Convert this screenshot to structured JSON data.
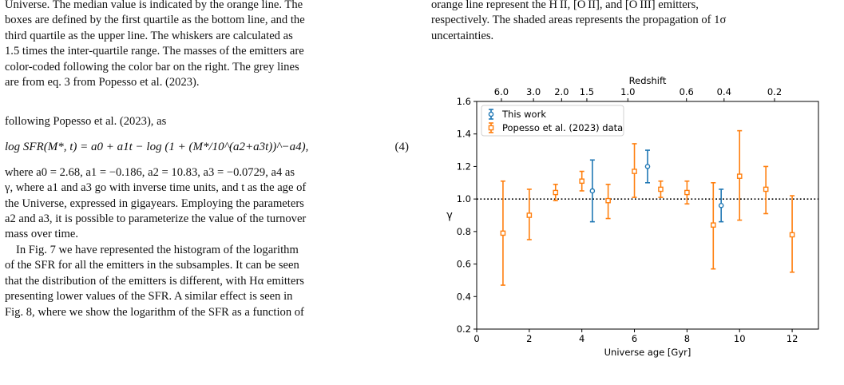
{
  "left_column": {
    "caption_lines": [
      "Universe. The median value is indicated by the orange line. The",
      "boxes are defined by the first quartile as the bottom line, and the",
      "third quartile as the upper line. The whiskers are calculated as",
      "1.5 times the inter-quartile range. The masses of the emitters are",
      "color-coded following the color bar on the right. The grey lines",
      "are from eq. 3 from Popesso et al. (2023)."
    ],
    "intro": "following Popesso et al. (2023), as",
    "equation": {
      "text": "log SFR(M*, t) = a0 + a1t − log (1 + (M*/10^(a2+a3t))^−a4),",
      "number": "(4)"
    },
    "para1_lines": [
      "where a0 = 2.68, a1 = −0.186, a2 = 10.83, a3 = −0.0729, a4 as",
      "γ, where a1 and a3 go with inverse time units, and t as the age of",
      "the Universe, expressed in gigayears. Employing the parameters",
      "a2 and a3, it is possible to parameterize the value of the turnover",
      "mass over time."
    ],
    "para2_lines": [
      "In Fig. 7 we have represented the histogram of the logarithm",
      "of the SFR for all the emitters in the subsamples. It can be seen",
      "that the distribution of the emitters is different, with Hα emitters",
      "presenting lower values of the SFR. A similar effect is seen in",
      "Fig. 8, where we show the logarithm of the SFR as a function of"
    ]
  },
  "right_column": {
    "caption_lines": [
      "orange line represent the H II, [O II], and [O III] emitters,",
      "respectively. The shaded areas represents the propagation of 1σ",
      "uncertainties."
    ]
  },
  "chart_data": {
    "type": "scatter",
    "title": "",
    "xlabel": "Universe age [Gyr]",
    "ylabel": "γ",
    "top_axis_label": "Redshift",
    "xlim": [
      0,
      13
    ],
    "ylim": [
      0.2,
      1.6
    ],
    "x_ticks": [
      0,
      2,
      4,
      6,
      8,
      10,
      12
    ],
    "y_ticks": [
      0.2,
      0.4,
      0.6,
      0.8,
      1.0,
      1.2,
      1.4,
      1.6
    ],
    "top_ticks": [
      {
        "label": "6.0",
        "age": 0.94
      },
      {
        "label": "3.0",
        "age": 2.16
      },
      {
        "label": "2.0",
        "age": 3.23
      },
      {
        "label": "1.5",
        "age": 4.19
      },
      {
        "label": "1.0",
        "age": 5.75
      },
      {
        "label": "0.6",
        "age": 7.98
      },
      {
        "label": "0.4",
        "age": 9.41
      },
      {
        "label": "0.2",
        "age": 11.33
      }
    ],
    "reference_line": 1.0,
    "legend_position": "top-left",
    "grid": false,
    "series": [
      {
        "name": "This work",
        "marker": "circle",
        "color": "#1f77b4",
        "points": [
          {
            "x": 4.4,
            "y": 1.05,
            "lo": 0.86,
            "hi": 1.24
          },
          {
            "x": 6.5,
            "y": 1.2,
            "lo": 1.1,
            "hi": 1.3
          },
          {
            "x": 9.3,
            "y": 0.96,
            "lo": 0.86,
            "hi": 1.06
          }
        ]
      },
      {
        "name": "Popesso et al. (2023) data",
        "marker": "square",
        "color": "#ff7f0e",
        "points": [
          {
            "x": 1.0,
            "y": 0.79,
            "lo": 0.47,
            "hi": 1.11
          },
          {
            "x": 2.0,
            "y": 0.9,
            "lo": 0.75,
            "hi": 1.06
          },
          {
            "x": 3.0,
            "y": 1.04,
            "lo": 0.99,
            "hi": 1.09
          },
          {
            "x": 4.0,
            "y": 1.11,
            "lo": 1.05,
            "hi": 1.17
          },
          {
            "x": 5.0,
            "y": 0.99,
            "lo": 0.88,
            "hi": 1.09
          },
          {
            "x": 6.0,
            "y": 1.17,
            "lo": 1.01,
            "hi": 1.34
          },
          {
            "x": 7.0,
            "y": 1.06,
            "lo": 1.01,
            "hi": 1.11
          },
          {
            "x": 8.0,
            "y": 1.04,
            "lo": 0.97,
            "hi": 1.11
          },
          {
            "x": 9.0,
            "y": 0.84,
            "lo": 0.57,
            "hi": 1.1
          },
          {
            "x": 10.0,
            "y": 1.14,
            "lo": 0.87,
            "hi": 1.42
          },
          {
            "x": 11.0,
            "y": 1.06,
            "lo": 0.91,
            "hi": 1.2
          },
          {
            "x": 12.0,
            "y": 0.78,
            "lo": 0.55,
            "hi": 1.02
          }
        ]
      }
    ]
  }
}
